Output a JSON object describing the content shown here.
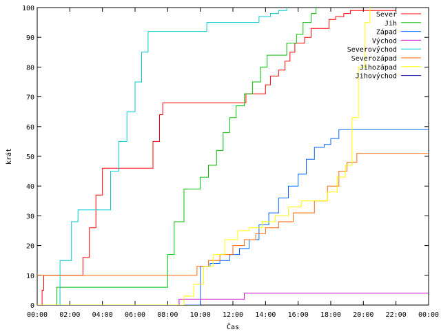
{
  "chart_data": {
    "type": "line",
    "title": "",
    "xlabel": "Čas",
    "ylabel": "krát",
    "xlim": [
      0,
      24
    ],
    "ylim": [
      0,
      100
    ],
    "grid": false,
    "legend_position": "top-right",
    "x_ticks": [
      "00:00",
      "02:00",
      "04:00",
      "06:00",
      "08:00",
      "10:00",
      "12:00",
      "14:00",
      "16:00",
      "18:00",
      "20:00",
      "22:00",
      "00:00"
    ],
    "y_ticks": [
      0,
      10,
      20,
      30,
      40,
      50,
      60,
      70,
      80,
      90,
      100
    ],
    "series": [
      {
        "name": "Sever",
        "color": "#ff0000",
        "x": [
          0,
          0.3,
          0.4,
          2.5,
          2.8,
          3.2,
          3.6,
          4.0,
          6.8,
          7.1,
          7.5,
          7.7,
          12.3,
          12.8,
          14.0,
          14.3,
          14.8,
          15.2,
          15.5,
          15.8,
          16.4,
          16.8,
          17.5,
          17.9,
          18.3,
          18.8,
          19.2,
          22.0
        ],
        "y": [
          0,
          5,
          10,
          10,
          16,
          26,
          37,
          46,
          46,
          55,
          64,
          68,
          68,
          71,
          74,
          77,
          79,
          82,
          85,
          88,
          90,
          93,
          93,
          96,
          97,
          98,
          99,
          99
        ]
      },
      {
        "name": "Jih",
        "color": "#00c000",
        "x": [
          0,
          0.8,
          1.2,
          7.7,
          8.0,
          8.4,
          9.0,
          9.5,
          10.0,
          10.5,
          11.0,
          11.4,
          11.8,
          12.2,
          12.7,
          13.2,
          13.7,
          14.1,
          14.7,
          15.3,
          15.9,
          16.3,
          16.8,
          17.1
        ],
        "y": [
          0,
          0,
          6,
          6,
          17,
          28,
          39,
          39,
          43,
          47,
          52,
          58,
          63,
          67,
          71,
          75,
          80,
          84,
          84,
          88,
          91,
          95,
          98,
          100
        ]
      },
      {
        "name": "Západ",
        "color": "#0066ff",
        "x": [
          0,
          9.6,
          10.0,
          10.6,
          11.2,
          11.8,
          12.4,
          13.0,
          13.6,
          14.2,
          14.8,
          15.4,
          16.0,
          16.5,
          17.0,
          17.6,
          18.0,
          18.5,
          18.9,
          24
        ],
        "y": [
          0,
          0,
          13,
          14,
          15,
          17,
          19,
          22,
          27,
          31,
          36,
          40,
          44,
          49,
          53,
          54,
          56,
          59,
          59,
          59
        ]
      },
      {
        "name": "Východ",
        "color": "#cc00cc",
        "x": [
          0,
          8.6,
          8.7,
          12.6,
          12.7,
          24
        ],
        "y": [
          0,
          0,
          2,
          2,
          4,
          4
        ]
      },
      {
        "name": "Severovýchod",
        "color": "#00cccc",
        "x": [
          0,
          0.8,
          1.4,
          2.1,
          2.5,
          4.1,
          4.5,
          5.0,
          5.5,
          6.0,
          6.4,
          6.8,
          10.0,
          10.4,
          13.2,
          13.6,
          14.3,
          14.8,
          15.3
        ],
        "y": [
          0,
          0,
          15,
          28,
          32,
          32,
          45,
          55,
          65,
          75,
          85,
          92,
          92,
          95,
          95,
          97,
          98,
          99,
          100
        ]
      },
      {
        "name": "Severozápad",
        "color": "#ff6600",
        "x": [
          0,
          0.6,
          9.4,
          9.8,
          10.5,
          11.2,
          12.0,
          12.7,
          13.4,
          14.0,
          14.8,
          15.7,
          17.0,
          17.8,
          18.5,
          19.0,
          19.6,
          21.7,
          22.2,
          24
        ],
        "y": [
          10,
          10,
          10,
          13,
          15,
          17,
          20,
          22,
          24,
          26,
          28,
          31,
          35,
          40,
          45,
          48,
          51,
          51,
          51,
          51
        ]
      },
      {
        "name": "Jihozápad",
        "color": "#ffff00",
        "x": [
          0,
          8.5,
          9.0,
          9.6,
          10.2,
          10.8,
          11.5,
          12.3,
          13.0,
          13.8,
          14.6,
          15.4,
          16.2,
          17.0,
          17.8,
          18.4,
          18.9,
          19.3,
          19.7,
          20.1,
          20.4
        ],
        "y": [
          0,
          0,
          3,
          7,
          13,
          17,
          22,
          25,
          26,
          28,
          30,
          33,
          35,
          35,
          38,
          43,
          47,
          63,
          80,
          95,
          100
        ]
      },
      {
        "name": "Jihovýchod",
        "color": "#000099",
        "x": [],
        "y": []
      }
    ]
  }
}
